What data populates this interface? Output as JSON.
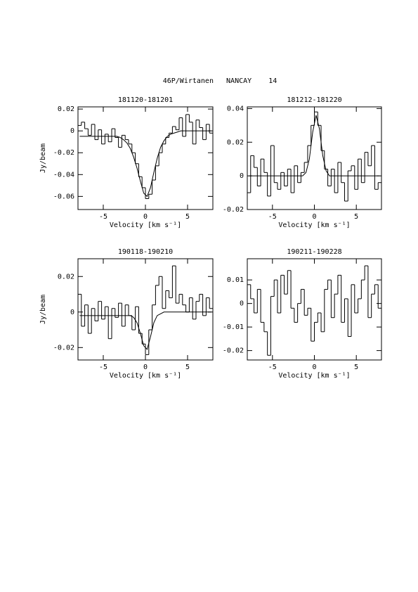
{
  "title": "46P/Wirtanen   NANCAY    14",
  "chart_data": [
    {
      "type": "step",
      "title": "181120-181201",
      "xlabel": "Velocity [km s⁻¹]",
      "ylabel": "Jy/beam",
      "xlim": [
        -8,
        8
      ],
      "xticks": [
        -5,
        0,
        5
      ],
      "ylim": [
        -0.072,
        0.022
      ],
      "yticks": [
        -0.06,
        -0.04,
        -0.02,
        0,
        0.02
      ],
      "x": [
        -7.8,
        -7.4,
        -7.0,
        -6.6,
        -6.2,
        -5.8,
        -5.4,
        -5.0,
        -4.6,
        -4.2,
        -3.8,
        -3.4,
        -3.0,
        -2.6,
        -2.2,
        -1.8,
        -1.4,
        -1.0,
        -0.6,
        -0.2,
        0.2,
        0.6,
        1.0,
        1.4,
        1.8,
        2.2,
        2.6,
        3.0,
        3.4,
        3.8,
        4.2,
        4.6,
        5.0,
        5.4,
        5.8,
        6.2,
        6.6,
        7.0,
        7.4,
        7.8
      ],
      "series": [
        {
          "color": "#000000",
          "drawstyle": "steps",
          "values": [
            0.005,
            0.008,
            0.002,
            -0.004,
            0.006,
            -0.008,
            0.001,
            -0.012,
            -0.003,
            -0.01,
            0.002,
            -0.006,
            -0.015,
            -0.004,
            -0.008,
            -0.012,
            -0.02,
            -0.03,
            -0.042,
            -0.052,
            -0.062,
            -0.058,
            -0.045,
            -0.032,
            -0.02,
            -0.012,
            -0.006,
            -0.002,
            0.004,
            0.001,
            0.012,
            -0.005,
            0.015,
            0.008,
            -0.012,
            0.01,
            0.003,
            -0.008,
            0.006,
            -0.002
          ]
        },
        {
          "color": "#000000",
          "drawstyle": "line",
          "values": [
            -0.005,
            -0.005,
            -0.005,
            -0.005,
            -0.005,
            -0.005,
            -0.005,
            -0.005,
            -0.005,
            -0.005,
            -0.005,
            -0.005,
            -0.006,
            -0.008,
            -0.011,
            -0.016,
            -0.024,
            -0.034,
            -0.046,
            -0.057,
            -0.06,
            -0.052,
            -0.038,
            -0.025,
            -0.015,
            -0.009,
            -0.005,
            -0.003,
            -0.002,
            -0.001,
            0,
            0,
            0,
            0,
            0,
            0,
            0,
            0,
            0,
            0
          ]
        }
      ]
    },
    {
      "type": "step",
      "title": "181212-181220",
      "xlabel": "Velocity [km s⁻¹]",
      "xlim": [
        -8,
        8
      ],
      "xticks": [
        -5,
        0,
        5
      ],
      "ylim": [
        -0.02,
        0.041
      ],
      "yticks": [
        -0.02,
        0,
        0.02,
        0.04
      ],
      "x": [
        -7.8,
        -7.4,
        -7.0,
        -6.6,
        -6.2,
        -5.8,
        -5.4,
        -5.0,
        -4.6,
        -4.2,
        -3.8,
        -3.4,
        -3.0,
        -2.6,
        -2.2,
        -1.8,
        -1.4,
        -1.0,
        -0.6,
        -0.2,
        0.2,
        0.6,
        1.0,
        1.4,
        1.8,
        2.2,
        2.6,
        3.0,
        3.4,
        3.8,
        4.2,
        4.6,
        5.0,
        5.4,
        5.8,
        6.2,
        6.6,
        7.0,
        7.4,
        7.8
      ],
      "series": [
        {
          "color": "#000000",
          "drawstyle": "steps",
          "values": [
            -0.01,
            0.012,
            0.005,
            -0.006,
            0.01,
            0.002,
            -0.012,
            0.018,
            -0.004,
            -0.008,
            0.002,
            -0.006,
            0.004,
            -0.01,
            0.006,
            -0.004,
            0.002,
            0.008,
            0.018,
            0.03,
            0.038,
            0.03,
            0.015,
            0.004,
            -0.006,
            0.004,
            -0.01,
            0.008,
            -0.004,
            -0.015,
            0.003,
            0.006,
            -0.008,
            0.01,
            -0.004,
            0.014,
            0.006,
            0.018,
            -0.008,
            -0.004
          ]
        },
        {
          "color": "#000000",
          "drawstyle": "line",
          "values": [
            0,
            0,
            0,
            0,
            0,
            0,
            0,
            0,
            0,
            0,
            0,
            0,
            0,
            0,
            0,
            0,
            0,
            0.002,
            0.01,
            0.026,
            0.036,
            0.028,
            0.012,
            0.003,
            0,
            0,
            0,
            0,
            0,
            0,
            0,
            0,
            0,
            0,
            0,
            0,
            0,
            0,
            0,
            0
          ]
        }
      ]
    },
    {
      "type": "step",
      "title": "190118-190210",
      "xlabel": "Velocity [km s⁻¹]",
      "ylabel": "Jy/beam",
      "xlim": [
        -8,
        8
      ],
      "xticks": [
        -5,
        0,
        5
      ],
      "ylim": [
        -0.027,
        0.03
      ],
      "yticks": [
        -0.02,
        0,
        0.02
      ],
      "x": [
        -7.8,
        -7.4,
        -7.0,
        -6.6,
        -6.2,
        -5.8,
        -5.4,
        -5.0,
        -4.6,
        -4.2,
        -3.8,
        -3.4,
        -3.0,
        -2.6,
        -2.2,
        -1.8,
        -1.4,
        -1.0,
        -0.6,
        -0.2,
        0.2,
        0.6,
        1.0,
        1.4,
        1.8,
        2.2,
        2.6,
        3.0,
        3.4,
        3.8,
        4.2,
        4.6,
        5.0,
        5.4,
        5.8,
        6.2,
        6.6,
        7.0,
        7.4,
        7.8
      ],
      "series": [
        {
          "color": "#000000",
          "drawstyle": "steps",
          "values": [
            0.01,
            -0.008,
            0.004,
            -0.012,
            0.002,
            -0.005,
            0.006,
            -0.004,
            0.003,
            -0.015,
            0.002,
            -0.003,
            0.005,
            -0.008,
            0.004,
            -0.002,
            -0.01,
            0.003,
            -0.012,
            -0.018,
            -0.024,
            -0.01,
            0.004,
            0.015,
            0.02,
            0.002,
            0.012,
            0.008,
            0.026,
            0.005,
            0.01,
            0.004,
            0,
            0.008,
            -0.004,
            0.006,
            0.01,
            -0.002,
            0.008,
            0.002
          ]
        },
        {
          "color": "#000000",
          "drawstyle": "line",
          "values": [
            -0.002,
            -0.002,
            -0.002,
            -0.002,
            -0.002,
            -0.002,
            -0.002,
            -0.002,
            -0.002,
            -0.002,
            -0.002,
            -0.002,
            -0.002,
            -0.002,
            -0.002,
            -0.002,
            -0.003,
            -0.006,
            -0.012,
            -0.019,
            -0.021,
            -0.014,
            -0.006,
            -0.002,
            -0.001,
            0,
            0,
            0,
            0,
            0,
            0,
            0,
            0,
            0,
            0,
            0,
            0,
            0,
            0,
            0
          ]
        }
      ]
    },
    {
      "type": "step",
      "title": "190211-190228",
      "xlabel": "Velocity [km s⁻¹]",
      "xlim": [
        -8,
        8
      ],
      "xticks": [
        -5,
        0,
        5
      ],
      "ylim": [
        -0.024,
        0.019
      ],
      "yticks": [
        -0.02,
        -0.01,
        0,
        0.01
      ],
      "x": [
        -7.8,
        -7.4,
        -7.0,
        -6.6,
        -6.2,
        -5.8,
        -5.4,
        -5.0,
        -4.6,
        -4.2,
        -3.8,
        -3.4,
        -3.0,
        -2.6,
        -2.2,
        -1.8,
        -1.4,
        -1.0,
        -0.6,
        -0.2,
        0.2,
        0.6,
        1.0,
        1.4,
        1.8,
        2.2,
        2.6,
        3.0,
        3.4,
        3.8,
        4.2,
        4.6,
        5.0,
        5.4,
        5.8,
        6.2,
        6.6,
        7.0,
        7.4,
        7.8
      ],
      "series": [
        {
          "color": "#000000",
          "drawstyle": "steps",
          "values": [
            0.008,
            0.002,
            -0.004,
            0.006,
            -0.008,
            -0.012,
            -0.022,
            0.003,
            0.01,
            -0.004,
            0.012,
            0.004,
            0.014,
            -0.002,
            -0.008,
            0,
            0.006,
            -0.005,
            -0.002,
            -0.016,
            -0.008,
            -0.004,
            -0.012,
            0.006,
            0.01,
            -0.006,
            0.004,
            0.012,
            -0.008,
            0.002,
            -0.014,
            0.008,
            -0.004,
            0.002,
            0.01,
            0.016,
            -0.006,
            0.004,
            0.008,
            -0.002
          ]
        }
      ]
    }
  ]
}
